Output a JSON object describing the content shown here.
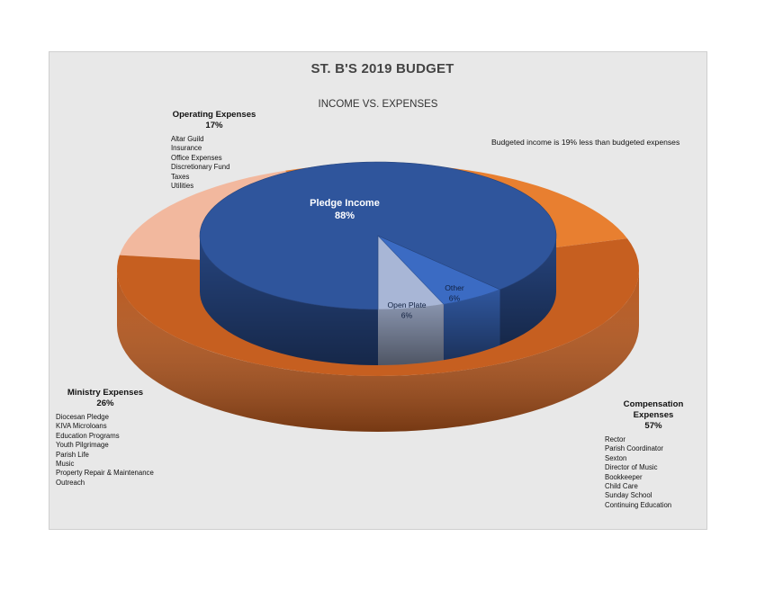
{
  "chart_data": {
    "type": "pie",
    "title": "ST. B'S 2019 BUDGET",
    "subtitle": "INCOME VS. EXPENSES",
    "annotation": "Budgeted income is 19% less than budgeted expenses",
    "rings": [
      {
        "name": "Income",
        "slices": [
          {
            "label": "Pledge Income",
            "pct_label": "88%",
            "value": 88,
            "color": "#2f559c"
          },
          {
            "label": "Open Plate",
            "pct_label": "6%",
            "value": 6,
            "color": "#a8b6d6"
          },
          {
            "label": "Other",
            "pct_label": "6%",
            "value": 6,
            "color": "#3b6bc3"
          }
        ]
      },
      {
        "name": "Expenses",
        "slices": [
          {
            "label": "Operating Expenses",
            "pct_label": "17%",
            "value": 17,
            "color": "#f2b89e",
            "items": [
              "Altar Guild",
              "Insurance",
              "Office Expenses",
              "Discretionary Fund",
              "Taxes",
              "Utilities"
            ]
          },
          {
            "label": "Ministry Expenses",
            "pct_label": "26%",
            "value": 26,
            "color": "#e87f30",
            "items": [
              "Diocesan Pledge",
              "KIVA Microloans",
              "Education Programs",
              "Youth Pilgrimage",
              "Parish Life",
              "Music",
              "Property Repair & Maintenance",
              "Outreach"
            ]
          },
          {
            "label": "Compensation Expenses",
            "pct_label": "57%",
            "value": 57,
            "color": "#c65f20",
            "items": [
              "Rector",
              "Parish Coordinator",
              "Sexton",
              "Director of Music",
              "Bookkeeper",
              "Child Care",
              "Sunday School",
              "Continuing Education"
            ]
          }
        ]
      }
    ]
  }
}
